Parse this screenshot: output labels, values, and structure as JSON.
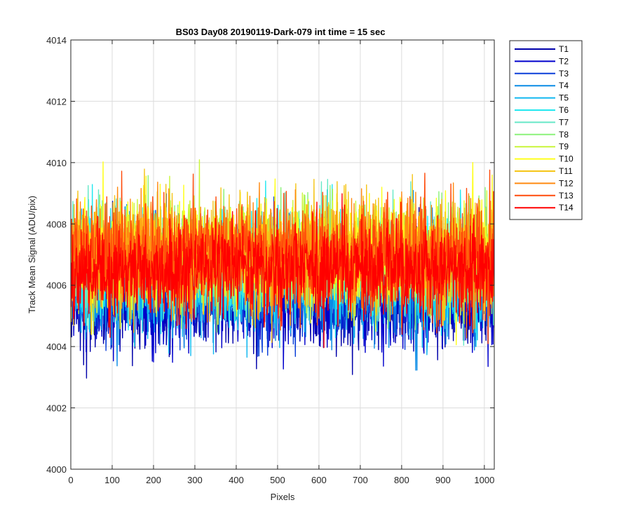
{
  "chart_data": {
    "type": "line",
    "title": "BS03 Day08 20190119-Dark-079 int time = 15 sec",
    "xlabel": "Pixels",
    "ylabel": "Track Mean Signal (ADU/pix)",
    "xlim": [
      0,
      1024
    ],
    "ylim": [
      4000,
      4014
    ],
    "x_ticks": [
      0,
      100,
      200,
      300,
      400,
      500,
      600,
      700,
      800,
      900,
      1000
    ],
    "y_ticks": [
      4000,
      4002,
      4004,
      4006,
      4008,
      4010,
      4012,
      4014
    ],
    "grid": true,
    "legend_position": "outside-top-right",
    "x": "pixel index 1..1024 (one sample per pixel)",
    "series": [
      {
        "name": "T1",
        "color": "#0000AA",
        "mean": 4005.6,
        "std": 0.85,
        "min": 4001.7,
        "max": 4010.2
      },
      {
        "name": "T2",
        "color": "#0000CC",
        "mean": 4005.7,
        "std": 0.85,
        "min": 4002.2,
        "max": 4010.0
      },
      {
        "name": "T3",
        "color": "#0A3FD9",
        "mean": 4006.0,
        "std": 0.85,
        "min": 4003.0,
        "max": 4010.4
      },
      {
        "name": "T4",
        "color": "#0A8CE6",
        "mean": 4006.2,
        "std": 0.85,
        "min": 4003.2,
        "max": 4011.0
      },
      {
        "name": "T5",
        "color": "#10B8F0",
        "mean": 4006.4,
        "std": 0.85,
        "min": 4003.6,
        "max": 4011.8
      },
      {
        "name": "T6",
        "color": "#22E8F0",
        "mean": 4006.6,
        "std": 0.85,
        "min": 4003.9,
        "max": 4011.7
      },
      {
        "name": "T7",
        "color": "#66E8C8",
        "mean": 4006.7,
        "std": 0.85,
        "min": 4004.0,
        "max": 4011.0
      },
      {
        "name": "T8",
        "color": "#8BF27A",
        "mean": 4006.8,
        "std": 0.85,
        "min": 4004.1,
        "max": 4011.3
      },
      {
        "name": "T9",
        "color": "#C9F53A",
        "mean": 4006.9,
        "std": 0.85,
        "min": 4004.1,
        "max": 4011.5
      },
      {
        "name": "T10",
        "color": "#FFFF1A",
        "mean": 4007.0,
        "std": 0.85,
        "min": 4003.6,
        "max": 4012.1
      },
      {
        "name": "T11",
        "color": "#F5C518",
        "mean": 4007.0,
        "std": 0.85,
        "min": 4004.0,
        "max": 4011.8
      },
      {
        "name": "T12",
        "color": "#FF8A10",
        "mean": 4007.0,
        "std": 0.85,
        "min": 4004.0,
        "max": 4011.6
      },
      {
        "name": "T13",
        "color": "#FF4A0A",
        "mean": 4006.9,
        "std": 0.85,
        "min": 4002.6,
        "max": 4011.2
      },
      {
        "name": "T14",
        "color": "#FF0000",
        "mean": 4006.5,
        "std": 0.75,
        "min": 4003.3,
        "max": 4010.0
      }
    ]
  }
}
